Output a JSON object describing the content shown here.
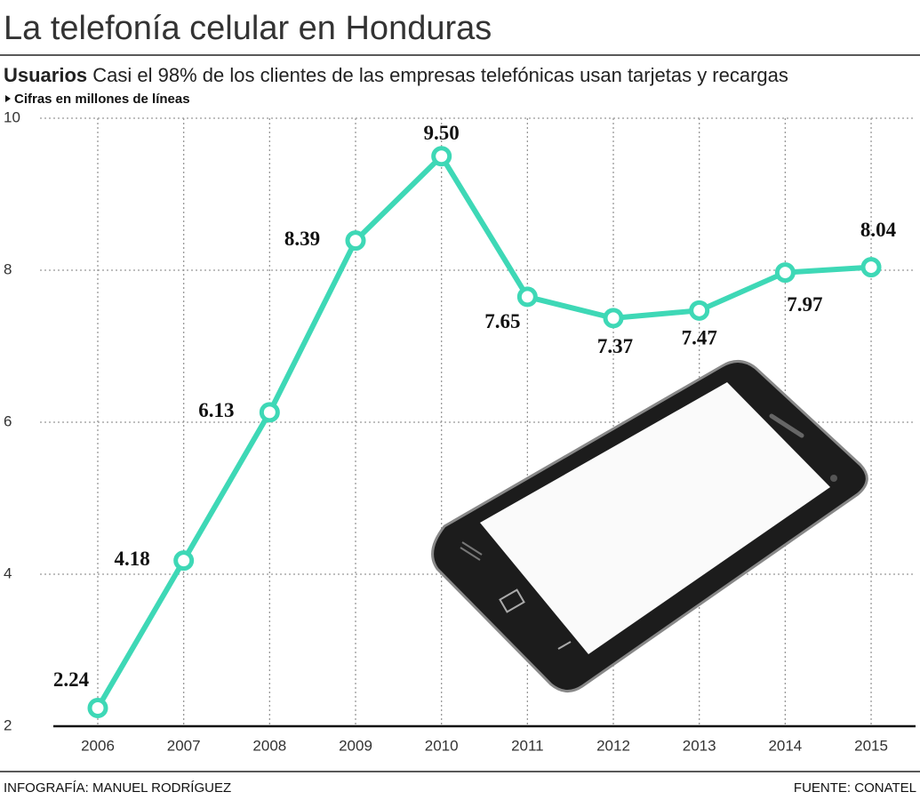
{
  "chart_data": {
    "type": "line",
    "title": "La telefonía celular en Honduras",
    "subtitle_bold": "Usuarios",
    "subtitle": "Casi el 98% de los clientes de las empresas telefónicas usan tarjetas y recargas",
    "note": "Cifras en millones de líneas",
    "credit": "INFOGRAFÍA: MANUEL RODRÍGUEZ",
    "source": "FUENTE: CONATEL",
    "categories": [
      "2006",
      "2007",
      "2008",
      "2009",
      "2010",
      "2011",
      "2012",
      "2013",
      "2014",
      "2015"
    ],
    "values": [
      2.24,
      4.18,
      6.13,
      8.39,
      9.5,
      7.65,
      7.37,
      7.47,
      7.97,
      8.04
    ],
    "value_labels": [
      "2.24",
      "4.18",
      "6.13",
      "8.39",
      "9.50",
      "7.65",
      "7.37",
      "7.47",
      "7.97",
      "8.04"
    ],
    "color": "#3ed8b6",
    "ylim": [
      2,
      10
    ],
    "yticks": [
      2,
      4,
      6,
      8,
      10
    ],
    "grid": true
  }
}
